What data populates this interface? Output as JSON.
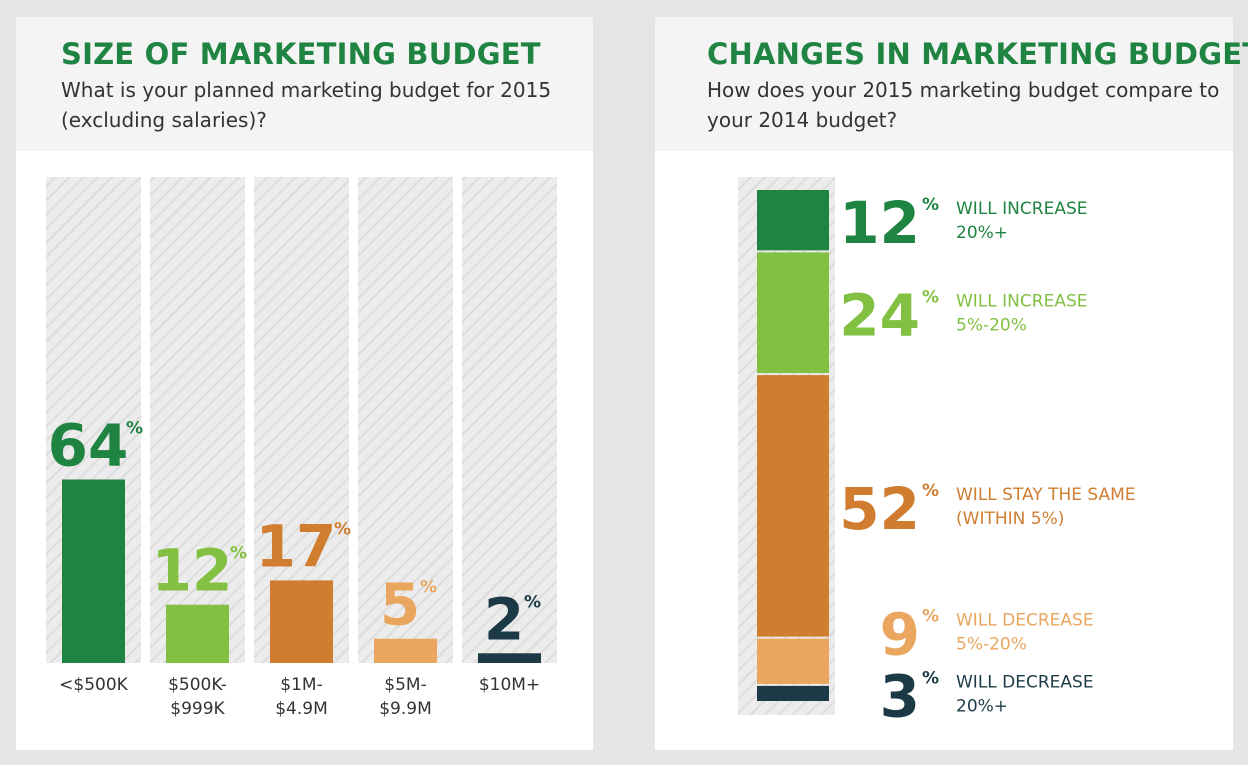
{
  "left": {
    "title": "SIZE OF MARKETING BUDGET",
    "subtitle": "What is your planned marketing budget for 2015\n(excluding salaries)?"
  },
  "right": {
    "title": "CHANGES IN MARKETING BUDGET",
    "subtitle": "How does your 2015 marketing budget compare to\nyour 2014 budget?"
  },
  "chart_data": [
    {
      "type": "bar",
      "title": "SIZE OF MARKETING BUDGET",
      "categories": [
        [
          "<$500K"
        ],
        [
          "$500K-",
          "$999K"
        ],
        [
          "$1M-",
          "$4.9M"
        ],
        [
          "$5M-",
          "$9.9M"
        ],
        [
          "$10M+"
        ]
      ],
      "values": [
        64,
        12,
        17,
        5,
        2
      ],
      "colors": [
        "#1f8442",
        "#82c041",
        "#d07d30",
        "#eaa65e",
        "#1c3a46"
      ],
      "unit": "%",
      "ylim": [
        0,
        100
      ]
    },
    {
      "type": "bar",
      "stacked": true,
      "title": "CHANGES IN MARKETING BUDGET",
      "segments": [
        {
          "value": 12,
          "label": [
            "WILL INCREASE",
            "20%+"
          ],
          "color": "#1f8442",
          "label_color": "#1f8442"
        },
        {
          "value": 24,
          "label": [
            "WILL INCREASE",
            "5%-20%"
          ],
          "color": "#82c041",
          "label_color": "#82c041"
        },
        {
          "value": 52,
          "label": [
            "WILL STAY THE SAME",
            "(WITHIN 5%)"
          ],
          "color": "#d07d30",
          "label_color": "#d07d30"
        },
        {
          "value": 9,
          "label": [
            "WILL DECREASE",
            "5%-20%"
          ],
          "color": "#eaa65e",
          "label_color": "#eaa65e"
        },
        {
          "value": 3,
          "label": [
            "WILL DECREASE",
            "20%+"
          ],
          "color": "#1c3a46",
          "label_color": "#1c3a46"
        }
      ],
      "unit": "%"
    }
  ]
}
